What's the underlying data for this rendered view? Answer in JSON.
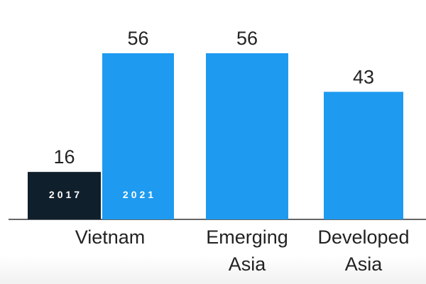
{
  "chart_data": {
    "type": "bar",
    "title": "",
    "xlabel": "",
    "ylabel": "",
    "ylim": [
      0,
      56
    ],
    "grid": false,
    "legend": "none",
    "bars": [
      {
        "category_index": 0,
        "series": "2017",
        "value": 16,
        "label": "16",
        "color": "#0f1f2b"
      },
      {
        "category_index": 0,
        "series": "2021",
        "value": 56,
        "label": "56",
        "color": "#1e9af0"
      },
      {
        "category_index": 1,
        "series": "2021",
        "value": 56,
        "label": "56",
        "color": "#1e9af0"
      },
      {
        "category_index": 2,
        "series": "2021",
        "value": 43,
        "label": "43",
        "color": "#1e9af0"
      }
    ],
    "categories": [
      {
        "lines": [
          "Vietnam"
        ]
      },
      {
        "lines": [
          "Emerging",
          "Asia"
        ]
      },
      {
        "lines": [
          "Developed",
          "Asia"
        ]
      }
    ],
    "series_labels": [
      "2017",
      "2021"
    ]
  }
}
